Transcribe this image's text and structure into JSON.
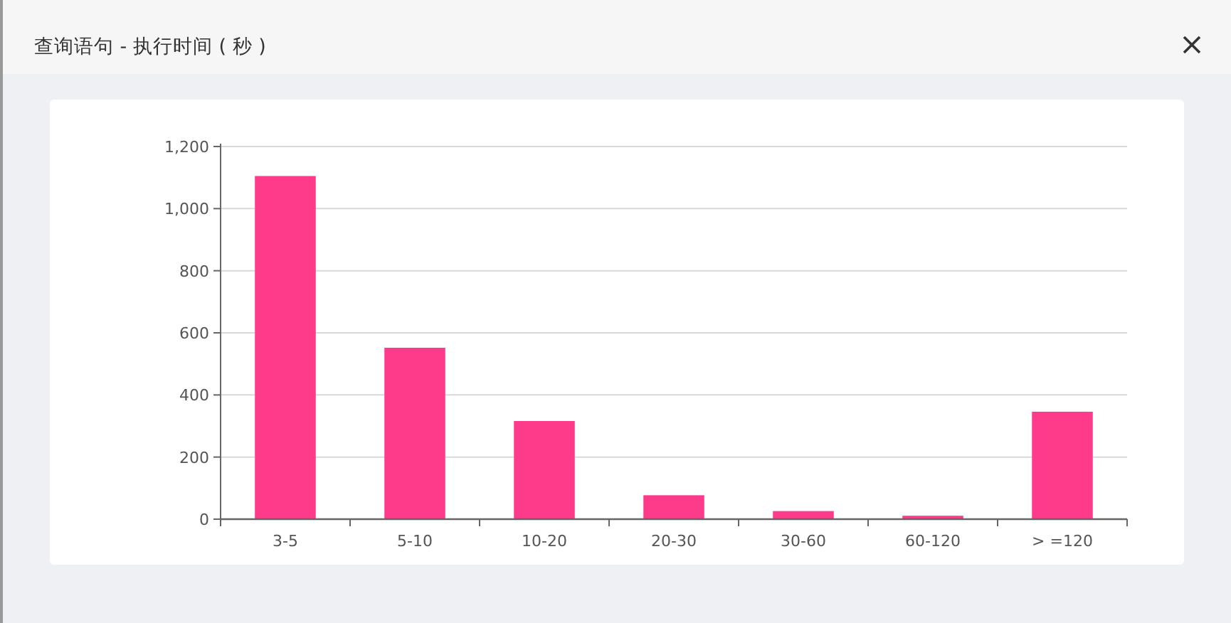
{
  "chart_data": {
    "type": "bar",
    "title": "查询语句 - 执行时间 ( 秒 )",
    "categories": [
      "3-5",
      "5-10",
      "10-20",
      "20-30",
      "30-60",
      "60-120",
      "> =120"
    ],
    "values": [
      1105,
      552,
      316,
      77,
      26,
      11,
      346
    ],
    "color": "#fe3a8a",
    "ylim": [
      0,
      1200
    ],
    "yticks": [
      0,
      200,
      400,
      600,
      800,
      {
        "value": 1000,
        "label": "1,000"
      },
      {
        "value": 1200,
        "label": "1,200"
      }
    ],
    "grid": "y"
  }
}
